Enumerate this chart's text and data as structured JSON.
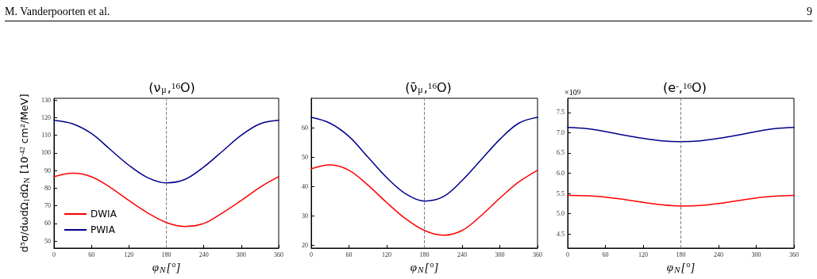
{
  "chart_data": [
    {
      "type": "line",
      "title": "(ν$_{μ}$,$^{16}$O)",
      "xlabel": "φ$_{N}$[°]",
      "ylabel": "d⁵σ/dωdΩ$_{l}$dΩ$_{N}$ [10$^{-42}$ cm²/MeV]",
      "annotations": [
        "M. Vanderpoorten et al.",
        "9"
      ],
      "x": [
        0,
        30,
        60,
        90,
        120,
        150,
        180,
        210,
        240,
        270,
        300,
        330,
        360
      ],
      "series": [
        {
          "name": "DWIA",
          "color": "#ff0000",
          "values": [
            86.5,
            88.5,
            86.5,
            80.5,
            73,
            66,
            60.5,
            58.3,
            60,
            66,
            73,
            80.5,
            86.5
          ]
        },
        {
          "name": "PWIA",
          "color": "#00008b",
          "values": [
            118.5,
            116.5,
            111,
            102,
            93,
            86,
            83,
            85,
            92,
            101,
            110,
            116.5,
            118.5
          ]
        }
      ],
      "xlim": [
        0,
        360
      ],
      "xticks": [
        0,
        60,
        120,
        180,
        240,
        300,
        360
      ],
      "ylim": [
        46,
        131
      ],
      "yticks": [
        50,
        60,
        70,
        80,
        90,
        100,
        110,
        120,
        130
      ],
      "ref_lines": [
        {
          "axis": "x",
          "value": 180,
          "color": "#808080",
          "line_style": "dashed"
        }
      ],
      "legend": "bottom left",
      "line_style": "solid"
    },
    {
      "type": "line",
      "title": "(ν̄$_{μ}$,$^{16}$O)",
      "xlabel": "φ$_{N}$[°]",
      "x": [
        0,
        30,
        60,
        90,
        120,
        150,
        180,
        210,
        240,
        270,
        300,
        330,
        360
      ],
      "series": [
        {
          "color": "#ff0000",
          "values": [
            46,
            47.3,
            45.5,
            40.5,
            34.5,
            29,
            25,
            23.4,
            25,
            30,
            36,
            41.5,
            45.5
          ]
        },
        {
          "color": "#00008b",
          "values": [
            63.5,
            61.5,
            57,
            50,
            43,
            37.5,
            35,
            36.5,
            42,
            49,
            56,
            61.5,
            63.5
          ]
        }
      ],
      "xlim": [
        0,
        360
      ],
      "xticks": [
        0,
        60,
        120,
        180,
        240,
        300,
        360
      ],
      "ylim": [
        19,
        70
      ],
      "yticks": [
        20,
        30,
        40,
        50,
        60
      ],
      "ref_lines": [
        {
          "axis": "x",
          "value": 180,
          "color": "#808080",
          "line_style": "dashed"
        }
      ],
      "line_style": "solid"
    },
    {
      "type": "line",
      "title": "(e$^{-}$,$^{16}$O)",
      "xlabel": "φ$_{N}$[°]",
      "annotations": [
        "×10$^{9}$"
      ],
      "x": [
        0,
        30,
        60,
        90,
        120,
        150,
        180,
        210,
        240,
        270,
        300,
        330,
        360
      ],
      "series": [
        {
          "color": "#ff0000",
          "values": [
            5.45,
            5.44,
            5.41,
            5.35,
            5.28,
            5.22,
            5.19,
            5.2,
            5.25,
            5.32,
            5.39,
            5.43,
            5.45
          ]
        },
        {
          "color": "#00008b",
          "values": [
            7.13,
            7.1,
            7.03,
            6.94,
            6.86,
            6.8,
            6.78,
            6.8,
            6.86,
            6.94,
            7.03,
            7.1,
            7.13
          ]
        }
      ],
      "xlim": [
        0,
        360
      ],
      "xticks": [
        0,
        60,
        120,
        180,
        240,
        300,
        360
      ],
      "ylim": [
        4.15,
        7.85
      ],
      "yticks": [
        4.5,
        {
          "value": 5,
          "label": "5.0"
        },
        5.5,
        {
          "value": 6,
          "label": "6.0"
        },
        6.5,
        {
          "value": 7,
          "label": "7.0"
        },
        7.5
      ],
      "ref_lines": [
        {
          "axis": "x",
          "value": 180,
          "color": "#808080",
          "line_style": "dashed"
        }
      ],
      "line_style": "solid"
    }
  ]
}
